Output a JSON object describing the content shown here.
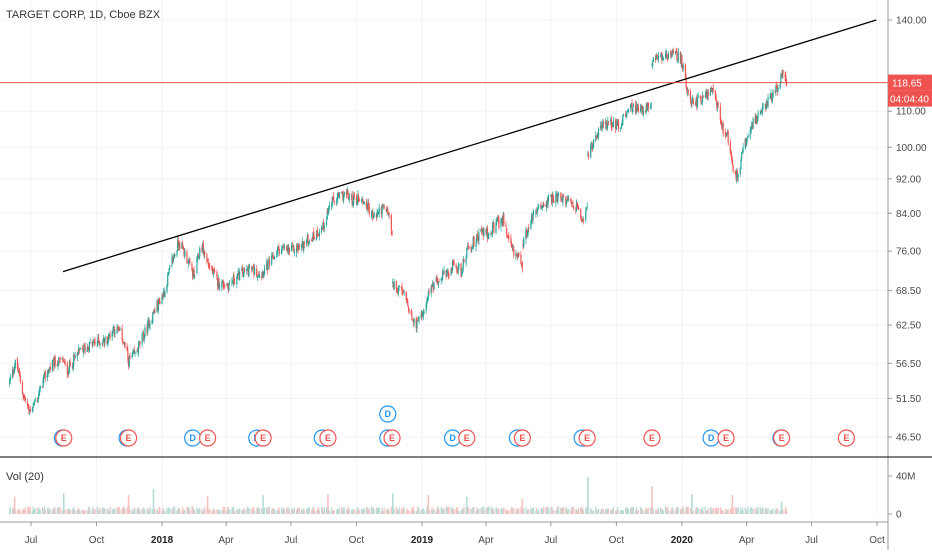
{
  "chart_data": {
    "type": "candlestick",
    "symbol_label": "TARGET CORP, 1D, Cboe BZX",
    "price_axis": {
      "ticks": [
        46.5,
        51.5,
        56.5,
        62.5,
        68.5,
        76.0,
        84.0,
        92.0,
        100.0,
        110.0,
        140.0
      ],
      "tick_labels": [
        "46.50",
        "51.50",
        "56.50",
        "62.50",
        "68.50",
        "76.00",
        "84.00",
        "92.00",
        "100.00",
        "110.00",
        "140.00"
      ],
      "scale": "log"
    },
    "time_axis": {
      "labels": [
        "Jul",
        "Oct",
        "2018",
        "Apr",
        "Jul",
        "Oct",
        "2019",
        "Apr",
        "Jul",
        "Oct",
        "2020",
        "Apr",
        "Jul",
        "Oct"
      ],
      "bold_labels": [
        "2018",
        "2019",
        "2020"
      ],
      "dates": [
        "2017-07-01",
        "2017-10-01",
        "2018-01-01",
        "2018-04-01",
        "2018-07-01",
        "2018-10-01",
        "2019-01-01",
        "2019-04-01",
        "2019-07-01",
        "2019-10-01",
        "2020-01-01",
        "2020-04-01",
        "2020-07-01",
        "2020-10-01"
      ]
    },
    "last_price": {
      "value": 118.65,
      "label": "118.65",
      "color": "#ef5350"
    },
    "countdown": {
      "label": "04:04:40",
      "color": "#ef5350"
    },
    "trendline": {
      "start": [
        "2017-08-15",
        72.0
      ],
      "end": [
        "2020-09-30",
        140.0
      ],
      "color": "#000000"
    },
    "price_path": [
      [
        "2017-06-01",
        53.8
      ],
      [
        "2017-06-10",
        56.8
      ],
      [
        "2017-06-20",
        52.0
      ],
      [
        "2017-06-28",
        49.8
      ],
      [
        "2017-07-10",
        51.5
      ],
      [
        "2017-07-20",
        54.5
      ],
      [
        "2017-08-01",
        56.5
      ],
      [
        "2017-08-15",
        56.9
      ],
      [
        "2017-08-20",
        55.3
      ],
      [
        "2017-09-05",
        58.0
      ],
      [
        "2017-09-20",
        59.2
      ],
      [
        "2017-10-01",
        59.8
      ],
      [
        "2017-10-15",
        60.0
      ],
      [
        "2017-10-25",
        62.0
      ],
      [
        "2017-11-05",
        61.0
      ],
      [
        "2017-11-15",
        56.8
      ],
      [
        "2017-11-25",
        58.0
      ],
      [
        "2017-12-05",
        60.5
      ],
      [
        "2017-12-20",
        64.5
      ],
      [
        "2018-01-05",
        68.5
      ],
      [
        "2018-01-15",
        74.0
      ],
      [
        "2018-01-25",
        78.0
      ],
      [
        "2018-02-05",
        74.5
      ],
      [
        "2018-02-15",
        71.0
      ],
      [
        "2018-02-25",
        77.5
      ],
      [
        "2018-03-05",
        74.0
      ],
      [
        "2018-03-20",
        70.0
      ],
      [
        "2018-04-05",
        69.5
      ],
      [
        "2018-04-20",
        71.5
      ],
      [
        "2018-05-05",
        72.5
      ],
      [
        "2018-05-20",
        71.5
      ],
      [
        "2018-06-01",
        73.5
      ],
      [
        "2018-06-15",
        76.5
      ],
      [
        "2018-07-01",
        76.0
      ],
      [
        "2018-07-15",
        77.0
      ],
      [
        "2018-08-01",
        79.0
      ],
      [
        "2018-08-15",
        81.0
      ],
      [
        "2018-08-25",
        86.0
      ],
      [
        "2018-09-05",
        87.5
      ],
      [
        "2018-09-15",
        88.5
      ],
      [
        "2018-09-25",
        87.0
      ],
      [
        "2018-10-05",
        87.5
      ],
      [
        "2018-10-15",
        86.0
      ],
      [
        "2018-10-25",
        83.0
      ],
      [
        "2018-11-05",
        85.0
      ],
      [
        "2018-11-15",
        84.0
      ],
      [
        "2018-11-20",
        79.0
      ],
      [
        "2018-11-21",
        70.0
      ],
      [
        "2018-12-01",
        68.5
      ],
      [
        "2018-12-10",
        67.0
      ],
      [
        "2018-12-20",
        63.0
      ],
      [
        "2018-12-26",
        62.5
      ],
      [
        "2019-01-05",
        66.0
      ],
      [
        "2019-01-15",
        69.0
      ],
      [
        "2019-01-25",
        71.0
      ],
      [
        "2019-02-05",
        71.5
      ],
      [
        "2019-02-15",
        73.5
      ],
      [
        "2019-02-25",
        72.0
      ],
      [
        "2019-03-05",
        76.0
      ],
      [
        "2019-03-15",
        78.0
      ],
      [
        "2019-03-25",
        80.0
      ],
      [
        "2019-04-05",
        79.5
      ],
      [
        "2019-04-15",
        81.5
      ],
      [
        "2019-04-25",
        82.5
      ],
      [
        "2019-05-05",
        77.0
      ],
      [
        "2019-05-15",
        75.0
      ],
      [
        "2019-05-22",
        72.0
      ],
      [
        "2019-05-23",
        78.0
      ],
      [
        "2019-06-05",
        83.0
      ],
      [
        "2019-06-20",
        86.0
      ],
      [
        "2019-07-05",
        87.5
      ],
      [
        "2019-07-20",
        87.0
      ],
      [
        "2019-08-05",
        86.0
      ],
      [
        "2019-08-15",
        83.0
      ],
      [
        "2019-08-21",
        85.0
      ],
      [
        "2019-08-22",
        98.0
      ],
      [
        "2019-09-05",
        104.0
      ],
      [
        "2019-09-20",
        107.0
      ],
      [
        "2019-10-05",
        106.0
      ],
      [
        "2019-10-20",
        111.0
      ],
      [
        "2019-11-05",
        110.5
      ],
      [
        "2019-11-19",
        111.0
      ],
      [
        "2019-11-20",
        125.0
      ],
      [
        "2019-12-05",
        127.0
      ],
      [
        "2019-12-20",
        129.0
      ],
      [
        "2019-12-31",
        126.0
      ],
      [
        "2020-01-10",
        115.0
      ],
      [
        "2020-01-20",
        112.5
      ],
      [
        "2020-02-01",
        114.0
      ],
      [
        "2020-02-15",
        117.0
      ],
      [
        "2020-02-25",
        106.0
      ],
      [
        "2020-03-05",
        103.0
      ],
      [
        "2020-03-12",
        95.0
      ],
      [
        "2020-03-20",
        92.0
      ],
      [
        "2020-03-25",
        98.0
      ],
      [
        "2020-04-05",
        105.0
      ],
      [
        "2020-04-20",
        110.0
      ],
      [
        "2020-05-05",
        114.0
      ],
      [
        "2020-05-15",
        117.0
      ],
      [
        "2020-05-20",
        121.5
      ],
      [
        "2020-05-27",
        118.65
      ]
    ],
    "gaps": [
      {
        "after": "2018-11-20",
        "before": "2018-11-21"
      },
      {
        "after": "2019-05-22",
        "before": "2019-05-23"
      },
      {
        "after": "2019-08-21",
        "before": "2019-08-22"
      },
      {
        "after": "2019-11-19",
        "before": "2019-11-20"
      }
    ],
    "earnings_markers": {
      "label": "E",
      "dates": [
        "2017-08-16",
        "2017-11-15",
        "2018-03-06",
        "2018-05-23",
        "2018-08-22",
        "2018-11-20",
        "2019-03-05",
        "2019-05-22",
        "2019-08-21",
        "2019-11-20",
        "2020-03-03",
        "2020-05-20",
        "2020-08-19"
      ]
    },
    "dividend_markers": {
      "label": "D",
      "dates": [
        "2017-08-14",
        "2017-11-13",
        "2018-02-13",
        "2018-05-14",
        "2018-08-14",
        "2018-11-14",
        "2019-02-13",
        "2019-05-15",
        "2019-08-14",
        "2020-02-11",
        "2020-05-19"
      ],
      "raised": {
        "date": "2018-11-14",
        "label": "D"
      }
    },
    "volume": {
      "title": "Vol (20)",
      "ticks": [
        0,
        40
      ],
      "tick_labels": [
        "0",
        "40M"
      ],
      "unit": "M",
      "spikes": [
        [
          "2017-06-08",
          18
        ],
        [
          "2017-08-16",
          22
        ],
        [
          "2017-11-15",
          20
        ],
        [
          "2017-12-20",
          26
        ],
        [
          "2018-03-06",
          19
        ],
        [
          "2018-05-23",
          20
        ],
        [
          "2018-08-22",
          21
        ],
        [
          "2018-11-21",
          22
        ],
        [
          "2019-01-10",
          20
        ],
        [
          "2019-03-05",
          18
        ],
        [
          "2019-05-22",
          16
        ],
        [
          "2019-08-22",
          39
        ],
        [
          "2019-11-20",
          29
        ],
        [
          "2020-01-15",
          21
        ],
        [
          "2020-03-12",
          20
        ],
        [
          "2020-05-20",
          13
        ]
      ]
    },
    "colors": {
      "up": "#26a69a",
      "down": "#ef5350",
      "volume_up": "#b6dcd8",
      "volume_down": "#f5c2c0",
      "grid": "#f1f3f6",
      "earnings": "#ef5350",
      "dividend": "#2196f3",
      "pane_divider": "#000000"
    }
  }
}
